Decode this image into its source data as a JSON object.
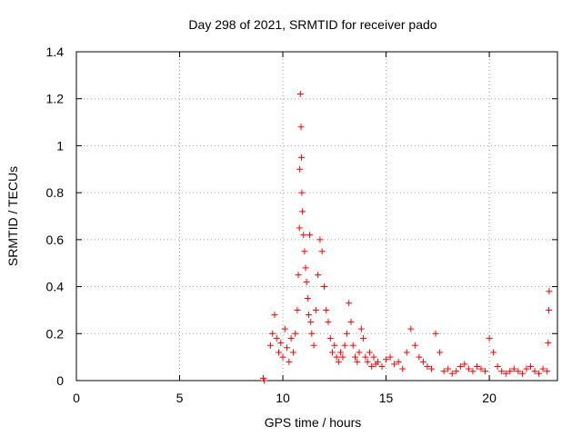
{
  "chart_data": {
    "type": "scatter",
    "title": "Day 298 of 2021, SRMTID for receiver pado",
    "xlabel": "GPS time / hours",
    "ylabel": "SRMTID / TECUs",
    "xlim": [
      0,
      23.3
    ],
    "ylim": [
      0,
      1.4
    ],
    "xticks": [
      0,
      5,
      10,
      15,
      20
    ],
    "yticks": [
      0,
      0.2,
      0.4,
      0.6,
      0.8,
      1,
      1.2,
      1.4
    ],
    "ytick_labels": [
      "0",
      "0.2",
      "0.4",
      "0.6",
      "0.8",
      "1",
      "1.2",
      "1.4"
    ],
    "grid": true,
    "marker": "+",
    "color": "#ff0000",
    "series": [
      {
        "name": "SRMTID",
        "x": [
          9.05,
          9.1,
          9.4,
          9.5,
          9.6,
          9.7,
          9.8,
          9.9,
          10.0,
          10.1,
          10.2,
          10.3,
          10.4,
          10.5,
          10.6,
          10.7,
          10.75,
          10.8,
          10.82,
          10.85,
          10.88,
          10.9,
          10.92,
          10.95,
          11.0,
          11.05,
          11.1,
          11.15,
          11.2,
          11.25,
          11.3,
          11.35,
          11.4,
          11.5,
          11.6,
          11.7,
          11.8,
          11.9,
          12.0,
          12.1,
          12.2,
          12.3,
          12.4,
          12.5,
          12.6,
          12.7,
          12.8,
          12.9,
          13.0,
          13.1,
          13.2,
          13.3,
          13.4,
          13.5,
          13.6,
          13.7,
          13.8,
          13.9,
          14.0,
          14.1,
          14.2,
          14.3,
          14.4,
          14.5,
          14.6,
          14.8,
          15.0,
          15.2,
          15.4,
          15.6,
          15.8,
          16.0,
          16.2,
          16.4,
          16.6,
          16.8,
          17.0,
          17.2,
          17.4,
          17.6,
          17.8,
          18.0,
          18.2,
          18.4,
          18.6,
          18.8,
          19.0,
          19.2,
          19.4,
          19.6,
          19.8,
          20.0,
          20.2,
          20.4,
          20.6,
          20.8,
          21.0,
          21.2,
          21.4,
          21.6,
          21.8,
          22.0,
          22.2,
          22.4,
          22.6,
          22.8,
          22.85,
          22.88,
          22.9
        ],
        "y": [
          0.01,
          0.0,
          0.15,
          0.2,
          0.28,
          0.18,
          0.12,
          0.16,
          0.1,
          0.22,
          0.14,
          0.08,
          0.18,
          0.12,
          0.2,
          0.3,
          0.45,
          0.65,
          0.9,
          1.22,
          1.08,
          0.95,
          0.8,
          0.72,
          0.62,
          0.55,
          0.48,
          0.42,
          0.35,
          0.28,
          0.62,
          0.25,
          0.2,
          0.15,
          0.3,
          0.45,
          0.6,
          0.55,
          0.4,
          0.3,
          0.25,
          0.18,
          0.12,
          0.15,
          0.1,
          0.08,
          0.12,
          0.1,
          0.15,
          0.2,
          0.33,
          0.25,
          0.15,
          0.1,
          0.08,
          0.12,
          0.22,
          0.18,
          0.1,
          0.08,
          0.12,
          0.06,
          0.1,
          0.07,
          0.08,
          0.06,
          0.09,
          0.1,
          0.07,
          0.08,
          0.05,
          0.12,
          0.22,
          0.15,
          0.1,
          0.08,
          0.06,
          0.05,
          0.2,
          0.12,
          0.04,
          0.05,
          0.03,
          0.04,
          0.06,
          0.07,
          0.05,
          0.04,
          0.06,
          0.05,
          0.04,
          0.18,
          0.12,
          0.06,
          0.04,
          0.03,
          0.04,
          0.05,
          0.04,
          0.03,
          0.05,
          0.06,
          0.04,
          0.03,
          0.05,
          0.04,
          0.16,
          0.3,
          0.38
        ]
      }
    ]
  }
}
